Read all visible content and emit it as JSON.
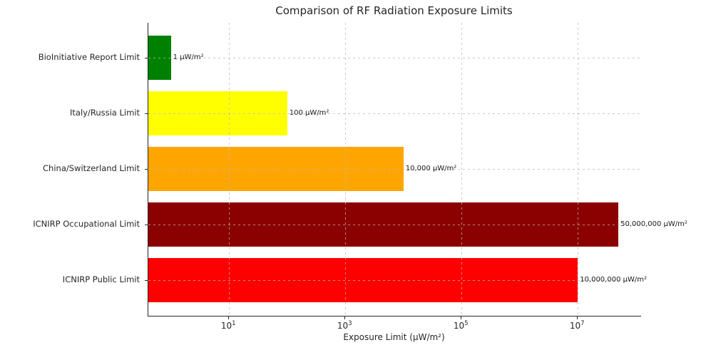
{
  "chart_data": {
    "type": "bar",
    "orientation": "horizontal",
    "title": "Comparison of RF Radiation Exposure Limits",
    "xlabel": "Exposure Limit (μW/m²)",
    "ylabel": "",
    "xscale": "log",
    "xlim_log10": [
      -0.39,
      8.09
    ],
    "grid": true,
    "legend": "none",
    "categories": [
      "BioInitiative Report Limit",
      "Italy/Russia Limit",
      "China/Switzerland Limit",
      "ICNIRP Occupational Limit",
      "ICNIRP Public Limit"
    ],
    "values": [
      1,
      100,
      10000,
      50000000,
      10000000
    ],
    "value_labels": [
      "1 μW/m²",
      "100 μW/m²",
      "10,000 μW/m²",
      "50,000,000 μW/m²",
      "10,000,000 μW/m²"
    ],
    "bar_colors": [
      "#008000",
      "#ffff00",
      "#ffa500",
      "#8b0000",
      "#ff0000"
    ],
    "x_ticks": [
      {
        "base": "10",
        "exp": "1",
        "value": 10
      },
      {
        "base": "10",
        "exp": "3",
        "value": 1000
      },
      {
        "base": "10",
        "exp": "5",
        "value": 100000
      },
      {
        "base": "10",
        "exp": "7",
        "value": 10000000
      }
    ]
  }
}
